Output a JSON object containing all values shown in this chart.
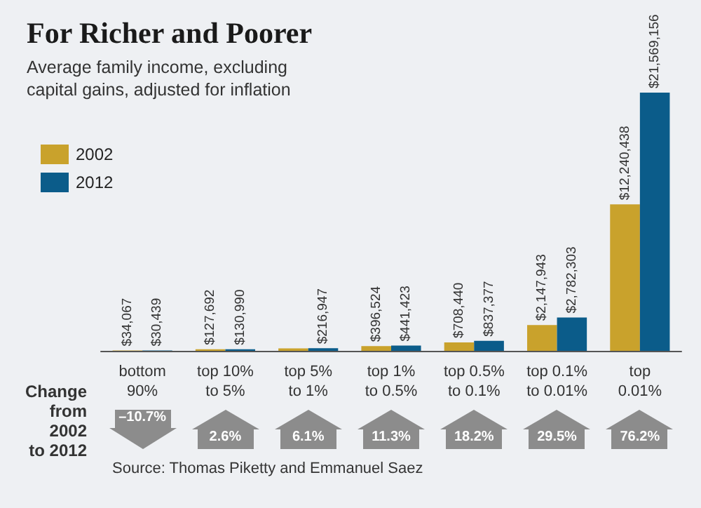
{
  "chart_data": {
    "type": "bar",
    "title": "For Richer and Poorer",
    "subtitle": "Average family income, excluding\ncapital gains, adjusted for inflation",
    "categories": [
      "bottom\n90%",
      "top 10%\nto 5%",
      "top 5%\nto 1%",
      "top 1%\nto 0.5%",
      "top 0.5%\nto 0.1%",
      "top 0.1%\nto 0.01%",
      "top\n0.01%"
    ],
    "series": [
      {
        "name": "2002",
        "color": "#c9a22c",
        "values": [
          34067,
          127692,
          204000,
          396524,
          708440,
          2147943,
          12240438
        ],
        "value_labels": [
          "$34,067",
          "$127,692",
          null,
          "$396,524",
          "$708,440",
          "$2,147,943",
          "$12,240,438"
        ]
      },
      {
        "name": "2012",
        "color": "#0b5c8a",
        "values": [
          30439,
          130990,
          216947,
          441423,
          837377,
          2782303,
          21569156
        ],
        "value_labels": [
          "$30,439",
          "$130,990",
          "$216,947",
          "$441,423",
          "$837,377",
          "$2,782,303",
          "$21,569,156"
        ]
      }
    ],
    "annotations": [
      "Change\nfrom\n2002\nto 2012",
      "Source: Thomas Piketty and Emmanuel Saez",
      "–10.7%",
      "2.6%",
      "6.1%",
      "11.3%",
      "18.2%",
      "29.5%",
      "76.2%"
    ],
    "legend": "top left",
    "grid": false
  }
}
